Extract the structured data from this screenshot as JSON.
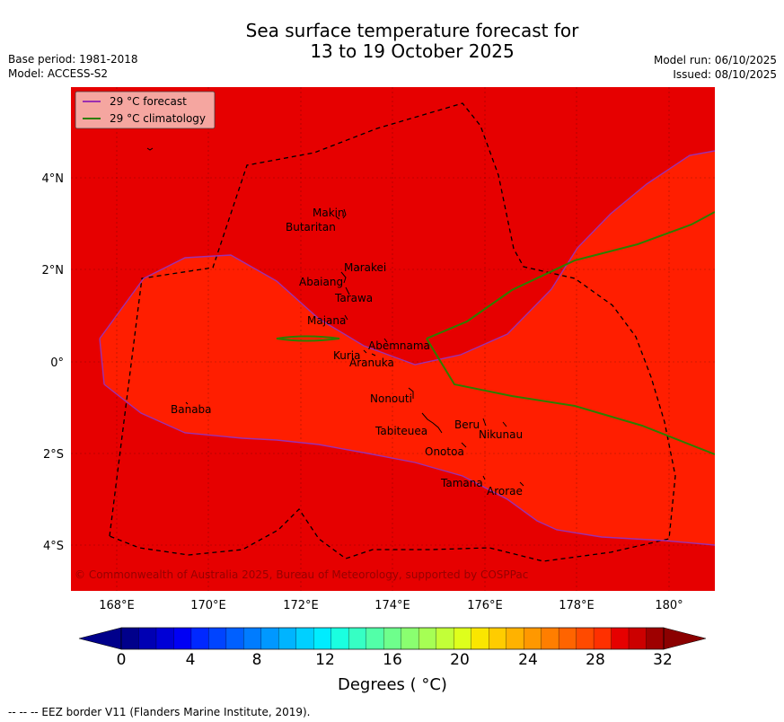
{
  "title": {
    "line1": "Sea surface temperature forecast for",
    "line2": "13 to 19 October 2025"
  },
  "meta": {
    "base_period": "Base period: 1981-2018",
    "model": "Model: ACCESS-S2",
    "model_run": "Model run: 06/10/2025",
    "issued": "Issued: 08/10/2025"
  },
  "map": {
    "longitude_range": [
      167,
      181
    ],
    "latitude_range": [
      -5,
      6
    ],
    "x_ticks": [
      {
        "value": 168,
        "label": "168°E"
      },
      {
        "value": 170,
        "label": "170°E"
      },
      {
        "value": 172,
        "label": "172°E"
      },
      {
        "value": 174,
        "label": "174°E"
      },
      {
        "value": 176,
        "label": "176°E"
      },
      {
        "value": 178,
        "label": "178°E"
      },
      {
        "value": 180,
        "label": "180°"
      }
    ],
    "y_ticks": [
      {
        "value": 4,
        "label": "4°N"
      },
      {
        "value": 2,
        "label": "2°N"
      },
      {
        "value": 0,
        "label": "0°"
      },
      {
        "value": -2,
        "label": "2°S"
      },
      {
        "value": -4,
        "label": "4°S"
      }
    ],
    "legend": [
      {
        "label": "29 °C  forecast",
        "color": "#9b30b0"
      },
      {
        "label": "29 °C  climatology",
        "color": "#2e7d00"
      }
    ],
    "islands": [
      {
        "name": "Makin",
        "lon": 172.9,
        "lat": 3.2
      },
      {
        "name": "Butaritan",
        "lon": 172.8,
        "lat": 2.95
      },
      {
        "name": "Marakei",
        "lon": 173.3,
        "lat": 2.0
      },
      {
        "name": "Abaiang",
        "lon": 172.95,
        "lat": 1.8
      },
      {
        "name": "Tarawa",
        "lon": 173.0,
        "lat": 1.4
      },
      {
        "name": "Majana",
        "lon": 173.0,
        "lat": 0.9
      },
      {
        "name": "Abemnama",
        "lon": 173.85,
        "lat": 0.45
      },
      {
        "name": "Kuria",
        "lon": 173.4,
        "lat": 0.2
      },
      {
        "name": "Aranuka",
        "lon": 173.6,
        "lat": 0.15
      },
      {
        "name": "Nonouti",
        "lon": 174.4,
        "lat": -0.65
      },
      {
        "name": "Banaba",
        "lon": 169.55,
        "lat": -0.85
      },
      {
        "name": "Beru",
        "lon": 175.95,
        "lat": -1.35
      },
      {
        "name": "Nikunau",
        "lon": 176.45,
        "lat": -1.35
      },
      {
        "name": "Tabiteuea",
        "lon": 174.9,
        "lat": -1.4
      },
      {
        "name": "Onotoa",
        "lon": 175.55,
        "lat": -1.85
      },
      {
        "name": "Tamana",
        "lon": 175.95,
        "lat": -2.55
      },
      {
        "name": "Arorae",
        "lon": 176.8,
        "lat": -2.7
      }
    ],
    "copyright": "© Commonwealth of Australia 2025, Bureau of Meteorology, supported by COSPPac"
  },
  "colorbar": {
    "tick_labels": [
      "0",
      "4",
      "8",
      "12",
      "16",
      "20",
      "24",
      "28",
      "32"
    ],
    "units": "Degrees ( °C)",
    "colors": [
      "#00008b",
      "#0000b3",
      "#0000d6",
      "#0000f5",
      "#0028ff",
      "#0044ff",
      "#0060ff",
      "#007cff",
      "#0098ff",
      "#00b4ff",
      "#00d0ff",
      "#00ecff",
      "#1affe0",
      "#36ffc4",
      "#52ffa8",
      "#6eff8c",
      "#8aff70",
      "#a6ff54",
      "#c2ff38",
      "#deff1c",
      "#fae600",
      "#ffcc00",
      "#ffb200",
      "#ff9800",
      "#ff7e00",
      "#ff6400",
      "#ff4a00",
      "#ff3000",
      "#e60000",
      "#cc0000",
      "#9e0000"
    ],
    "under_color": "#00008b",
    "over_color": "#8b0000"
  },
  "footer": "--  --  -- EEZ border V11 (Flanders Marine Institute, 2019).",
  "colors": {
    "warm_region": "#e60000",
    "cooler_region": "#ff1e00",
    "forecast_line": "#9b30b0",
    "climatology_line": "#2e7d00",
    "eez_line": "#000000"
  }
}
